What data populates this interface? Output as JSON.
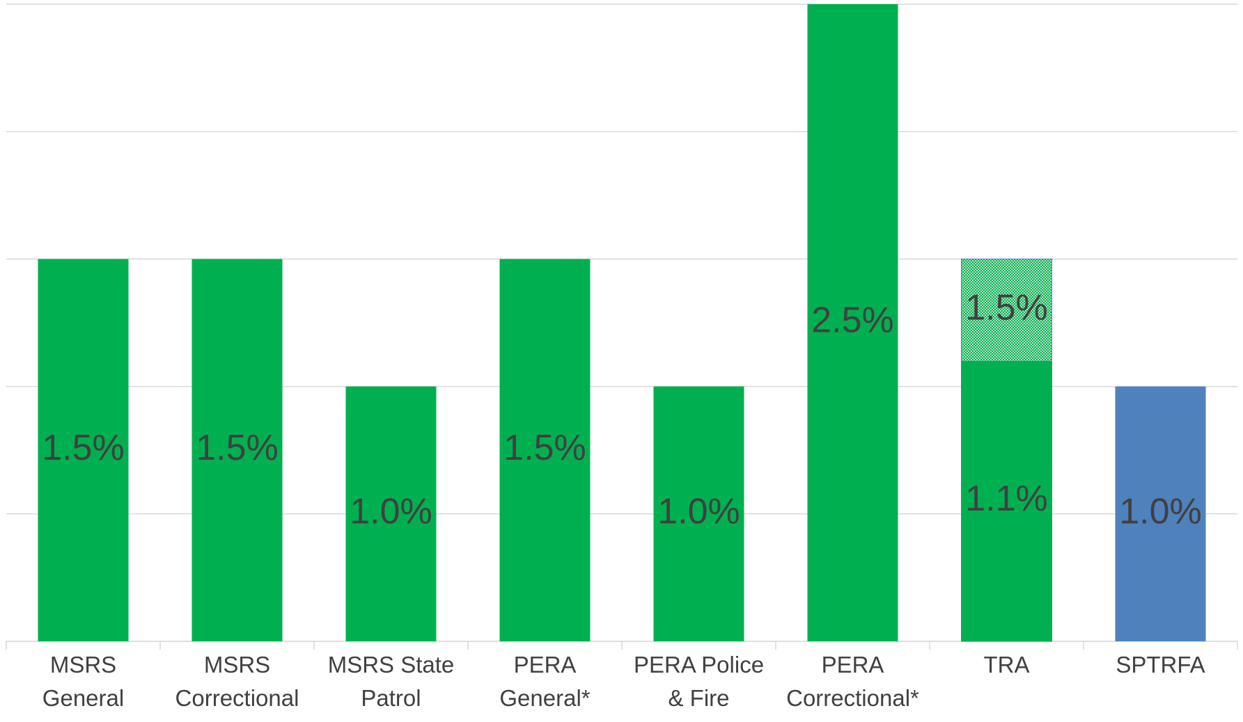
{
  "chart_data": {
    "type": "bar",
    "categories": [
      "MSRS\nGeneral",
      "MSRS\nCorrectional",
      "MSRS State\nPatrol",
      "PERA\nGeneral*",
      "PERA Police\n& Fire",
      "PERA\nCorrectional*",
      "TRA",
      "SPTRFA"
    ],
    "series": [
      {
        "colors": [
          "#00b050",
          "#00b050",
          "#00b050",
          "#00b050",
          "#00b050",
          "#00b050",
          "#00b050",
          "#4f81bd"
        ],
        "values": [
          1.5,
          1.5,
          1.0,
          1.5,
          1.0,
          2.5,
          1.1,
          1.0
        ],
        "value_labels": [
          "1.5%",
          "1.5%",
          "1.0%",
          "1.5%",
          "1.0%",
          "2.5%",
          "1.1%",
          "1.0%"
        ]
      },
      {
        "color": "#00b050",
        "pattern": "dots",
        "values": [
          null,
          null,
          null,
          null,
          null,
          null,
          1.5,
          null
        ],
        "value_labels": [
          null,
          null,
          null,
          null,
          null,
          null,
          "1.5%",
          null
        ]
      }
    ],
    "ylim": [
      0,
      2.5
    ],
    "yticks": [
      0,
      0.5,
      1.0,
      1.5,
      2.0,
      2.5
    ],
    "grid": true
  }
}
